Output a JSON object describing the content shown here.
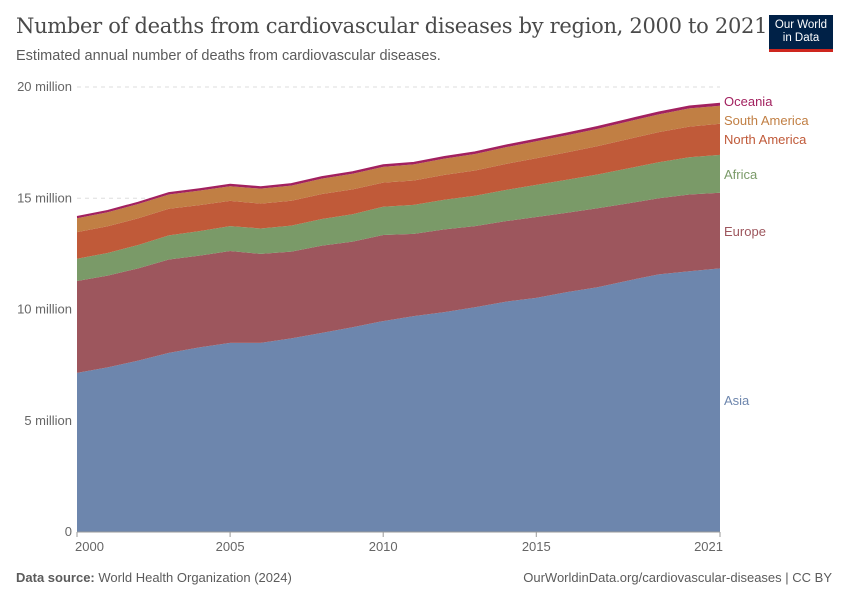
{
  "header": {
    "title": "Number of deaths from cardiovascular diseases by region, 2000 to 2021",
    "subtitle": "Estimated annual number of deaths from cardiovascular diseases.",
    "logo": "Our World in Data"
  },
  "footer": {
    "source_label": "Data source:",
    "source": "World Health Organization (2024)",
    "url": "OurWorldinData.org/cardiovascular-diseases | CC BY"
  },
  "chart_data": {
    "type": "area",
    "stacked": true,
    "title": "Number of deaths from cardiovascular diseases by region, 2000 to 2021",
    "xlabel": "",
    "ylabel": "",
    "ylim": [
      0,
      20000000
    ],
    "xlim": [
      2000,
      2021
    ],
    "grid": "horizontal dashed",
    "legend": "right, inline labels",
    "yticks": [
      {
        "v": 0,
        "label": "0"
      },
      {
        "v": 5000000,
        "label": "5 million"
      },
      {
        "v": 10000000,
        "label": "10 million"
      },
      {
        "v": 15000000,
        "label": "15 million"
      },
      {
        "v": 20000000,
        "label": "20 million"
      }
    ],
    "xticks": [
      {
        "v": 2000,
        "label": "2000"
      },
      {
        "v": 2005,
        "label": "2005"
      },
      {
        "v": 2010,
        "label": "2010"
      },
      {
        "v": 2015,
        "label": "2015"
      },
      {
        "v": 2021,
        "label": "2021"
      }
    ],
    "x": [
      2000,
      2001,
      2002,
      2003,
      2004,
      2005,
      2006,
      2007,
      2008,
      2009,
      2010,
      2011,
      2012,
      2013,
      2014,
      2015,
      2016,
      2017,
      2018,
      2019,
      2020,
      2021
    ],
    "series": [
      {
        "name": "Asia",
        "color": "#6D86AD",
        "values": [
          7150000,
          7400000,
          7700000,
          8050000,
          8300000,
          8500000,
          8500000,
          8700000,
          8950000,
          9200000,
          9480000,
          9700000,
          9880000,
          10100000,
          10350000,
          10520000,
          10780000,
          11000000,
          11300000,
          11580000,
          11720000,
          11850000
        ]
      },
      {
        "name": "Europe",
        "color": "#9D565D",
        "values": [
          4130000,
          4120000,
          4150000,
          4200000,
          4120000,
          4130000,
          4000000,
          3900000,
          3920000,
          3850000,
          3870000,
          3700000,
          3720000,
          3650000,
          3620000,
          3640000,
          3570000,
          3550000,
          3470000,
          3420000,
          3450000,
          3400000
        ]
      },
      {
        "name": "Africa",
        "color": "#7A9A68",
        "values": [
          1000000,
          1020000,
          1050000,
          1080000,
          1100000,
          1120000,
          1140000,
          1170000,
          1200000,
          1230000,
          1270000,
          1300000,
          1330000,
          1360000,
          1400000,
          1440000,
          1480000,
          1520000,
          1570000,
          1620000,
          1670000,
          1700000
        ]
      },
      {
        "name": "North America",
        "color": "#C05A39",
        "values": [
          1200000,
          1200000,
          1200000,
          1200000,
          1170000,
          1130000,
          1120000,
          1120000,
          1120000,
          1120000,
          1080000,
          1100000,
          1120000,
          1140000,
          1170000,
          1200000,
          1230000,
          1270000,
          1320000,
          1350000,
          1380000,
          1400000
        ]
      },
      {
        "name": "South America",
        "color": "#C17F44",
        "values": [
          620000,
          630000,
          640000,
          640000,
          650000,
          660000,
          670000,
          680000,
          690000,
          700000,
          710000,
          720000,
          730000,
          740000,
          750000,
          760000,
          770000,
          780000,
          790000,
          800000,
          820000,
          810000
        ]
      },
      {
        "name": "Oceania",
        "color": "#A2215F",
        "values": [
          70000,
          70000,
          72000,
          73000,
          75000,
          76000,
          77000,
          78000,
          80000,
          81000,
          82000,
          84000,
          85000,
          86000,
          88000,
          89000,
          90000,
          92000,
          93000,
          95000,
          97000,
          100000
        ]
      }
    ]
  }
}
